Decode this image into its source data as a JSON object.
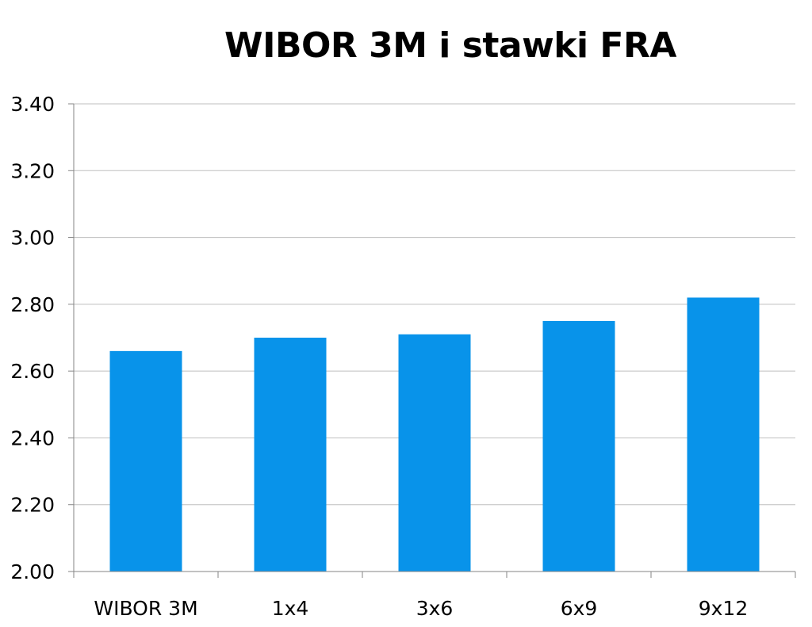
{
  "chart_data": {
    "type": "bar",
    "title": "WIBOR 3M i stawki FRA",
    "xlabel": "",
    "ylabel": "",
    "categories": [
      "WIBOR 3M",
      "1x4",
      "3x6",
      "6x9",
      "9x12"
    ],
    "values": [
      2.66,
      2.7,
      2.71,
      2.75,
      2.82
    ],
    "ylim": [
      2.0,
      3.4
    ],
    "yticks": [
      "2.00",
      "2.20",
      "2.40",
      "2.60",
      "2.80",
      "3.00",
      "3.20",
      "3.40"
    ],
    "grid": true,
    "legend": "none",
    "bar_color": "#0893EA",
    "grid_color": "#BFBFBF",
    "axis_color": "#868686"
  }
}
